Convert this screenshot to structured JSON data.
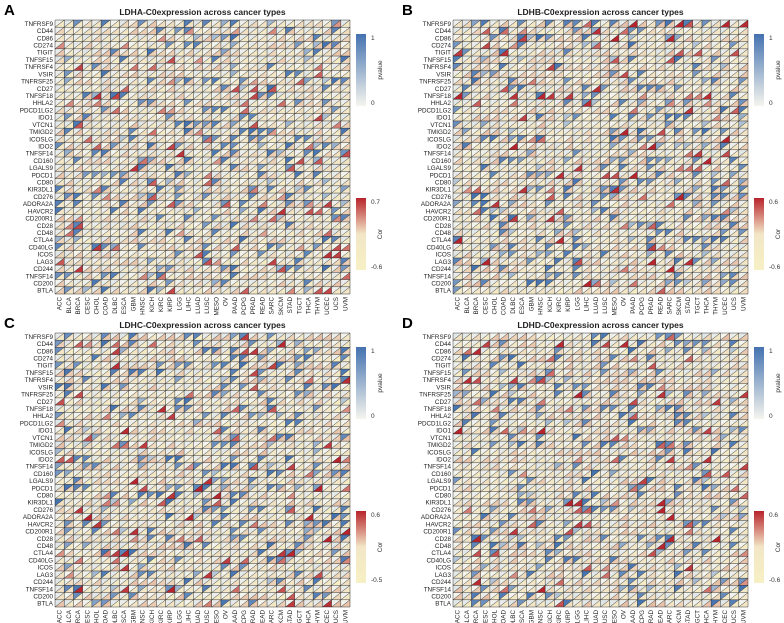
{
  "genes": [
    "TNFRSF9",
    "CD44",
    "CD86",
    "CD274",
    "TIGIT",
    "TNFSF15",
    "TNFRSF4",
    "VSIR",
    "TNFRSF25",
    "CD27",
    "TNFSF18",
    "HHLA2",
    "PDCD1LG2",
    "IDO1",
    "VTCN1",
    "TMIGD2",
    "ICOSLG",
    "IDO2",
    "TNFSF14",
    "CD160",
    "LGALS9",
    "PDCD1",
    "CD80",
    "KIR3DL1",
    "CD276",
    "ADORA2A",
    "HAVCR2",
    "CD200R1",
    "CD28",
    "CD48",
    "CTLA4",
    "CD40LG",
    "ICOS",
    "LAG3",
    "CD244",
    "TNFSF14",
    "CD200",
    "BTLA"
  ],
  "cancers": [
    "ACC",
    "BLCA",
    "BRCA",
    "CESC",
    "CHOL",
    "COAD",
    "DLBC",
    "ESCA",
    "GBM",
    "HNSC",
    "KICH",
    "KIRC",
    "KIRP",
    "LGG",
    "LIHC",
    "LUAD",
    "LUSC",
    "MESO",
    "OV",
    "PAAD",
    "PCPG",
    "PRAD",
    "READ",
    "SARC",
    "SKCM",
    "STAD",
    "TGCT",
    "THCA",
    "THYM",
    "UCEC",
    "UCS",
    "UVM"
  ],
  "panels": [
    {
      "letter": "A",
      "title": "LDHA-C0expression across cancer types",
      "pvalue_legend": {
        "title": "pvalue",
        "ticks": [
          "1",
          "0"
        ]
      },
      "cor_legend": {
        "title": "Cor",
        "ticks": [
          "0.7",
          "-0.6"
        ]
      }
    },
    {
      "letter": "B",
      "title": "LDHB-C0expression across cancer types",
      "pvalue_legend": {
        "title": "pvalue",
        "ticks": [
          "1",
          "0"
        ]
      },
      "cor_legend": {
        "title": "Cor",
        "ticks": [
          "0.6",
          "-0.6"
        ]
      }
    },
    {
      "letter": "C",
      "title": "LDHC-C0expression across cancer types",
      "pvalue_legend": {
        "title": "pvalue",
        "ticks": [
          "1",
          "0"
        ]
      },
      "cor_legend": {
        "title": "Cor",
        "ticks": [
          "0.6",
          "-0.5"
        ]
      }
    },
    {
      "letter": "D",
      "title": "LDHD-C0expression across cancer types",
      "pvalue_legend": {
        "title": "pvalue",
        "ticks": [
          "1",
          "0"
        ]
      },
      "cor_legend": {
        "title": "Cor",
        "ticks": [
          "0.6",
          "-0.6"
        ]
      }
    }
  ],
  "chart_data": [
    {
      "type": "heatmap",
      "title": "LDHA-C0expression across cancer types",
      "pvalue_range": [
        0,
        1
      ],
      "cor_range": [
        -0.6,
        0.7
      ],
      "x": "cancers",
      "y": "genes",
      "seed": 11
    },
    {
      "type": "heatmap",
      "title": "LDHB-C0expression across cancer types",
      "pvalue_range": [
        0,
        1
      ],
      "cor_range": [
        -0.6,
        0.6
      ],
      "x": "cancers",
      "y": "genes",
      "seed": 23
    },
    {
      "type": "heatmap",
      "title": "LDHC-C0expression across cancer types",
      "pvalue_range": [
        0,
        1
      ],
      "cor_range": [
        -0.5,
        0.6
      ],
      "x": "cancers",
      "y": "genes",
      "seed": 37
    },
    {
      "type": "heatmap",
      "title": "LDHD-C0expression across cancer types",
      "pvalue_range": [
        0,
        1
      ],
      "cor_range": [
        -0.6,
        0.6
      ],
      "x": "cancers",
      "y": "genes",
      "seed": 51
    }
  ],
  "colors": {
    "pvalue_high": "#4472b0",
    "pvalue_low": "#f5f5ee",
    "cor_high": "#b8242c",
    "cor_low": "#f7f0c4",
    "cor_mid": "#f2e6c6",
    "grid": "#222222"
  }
}
